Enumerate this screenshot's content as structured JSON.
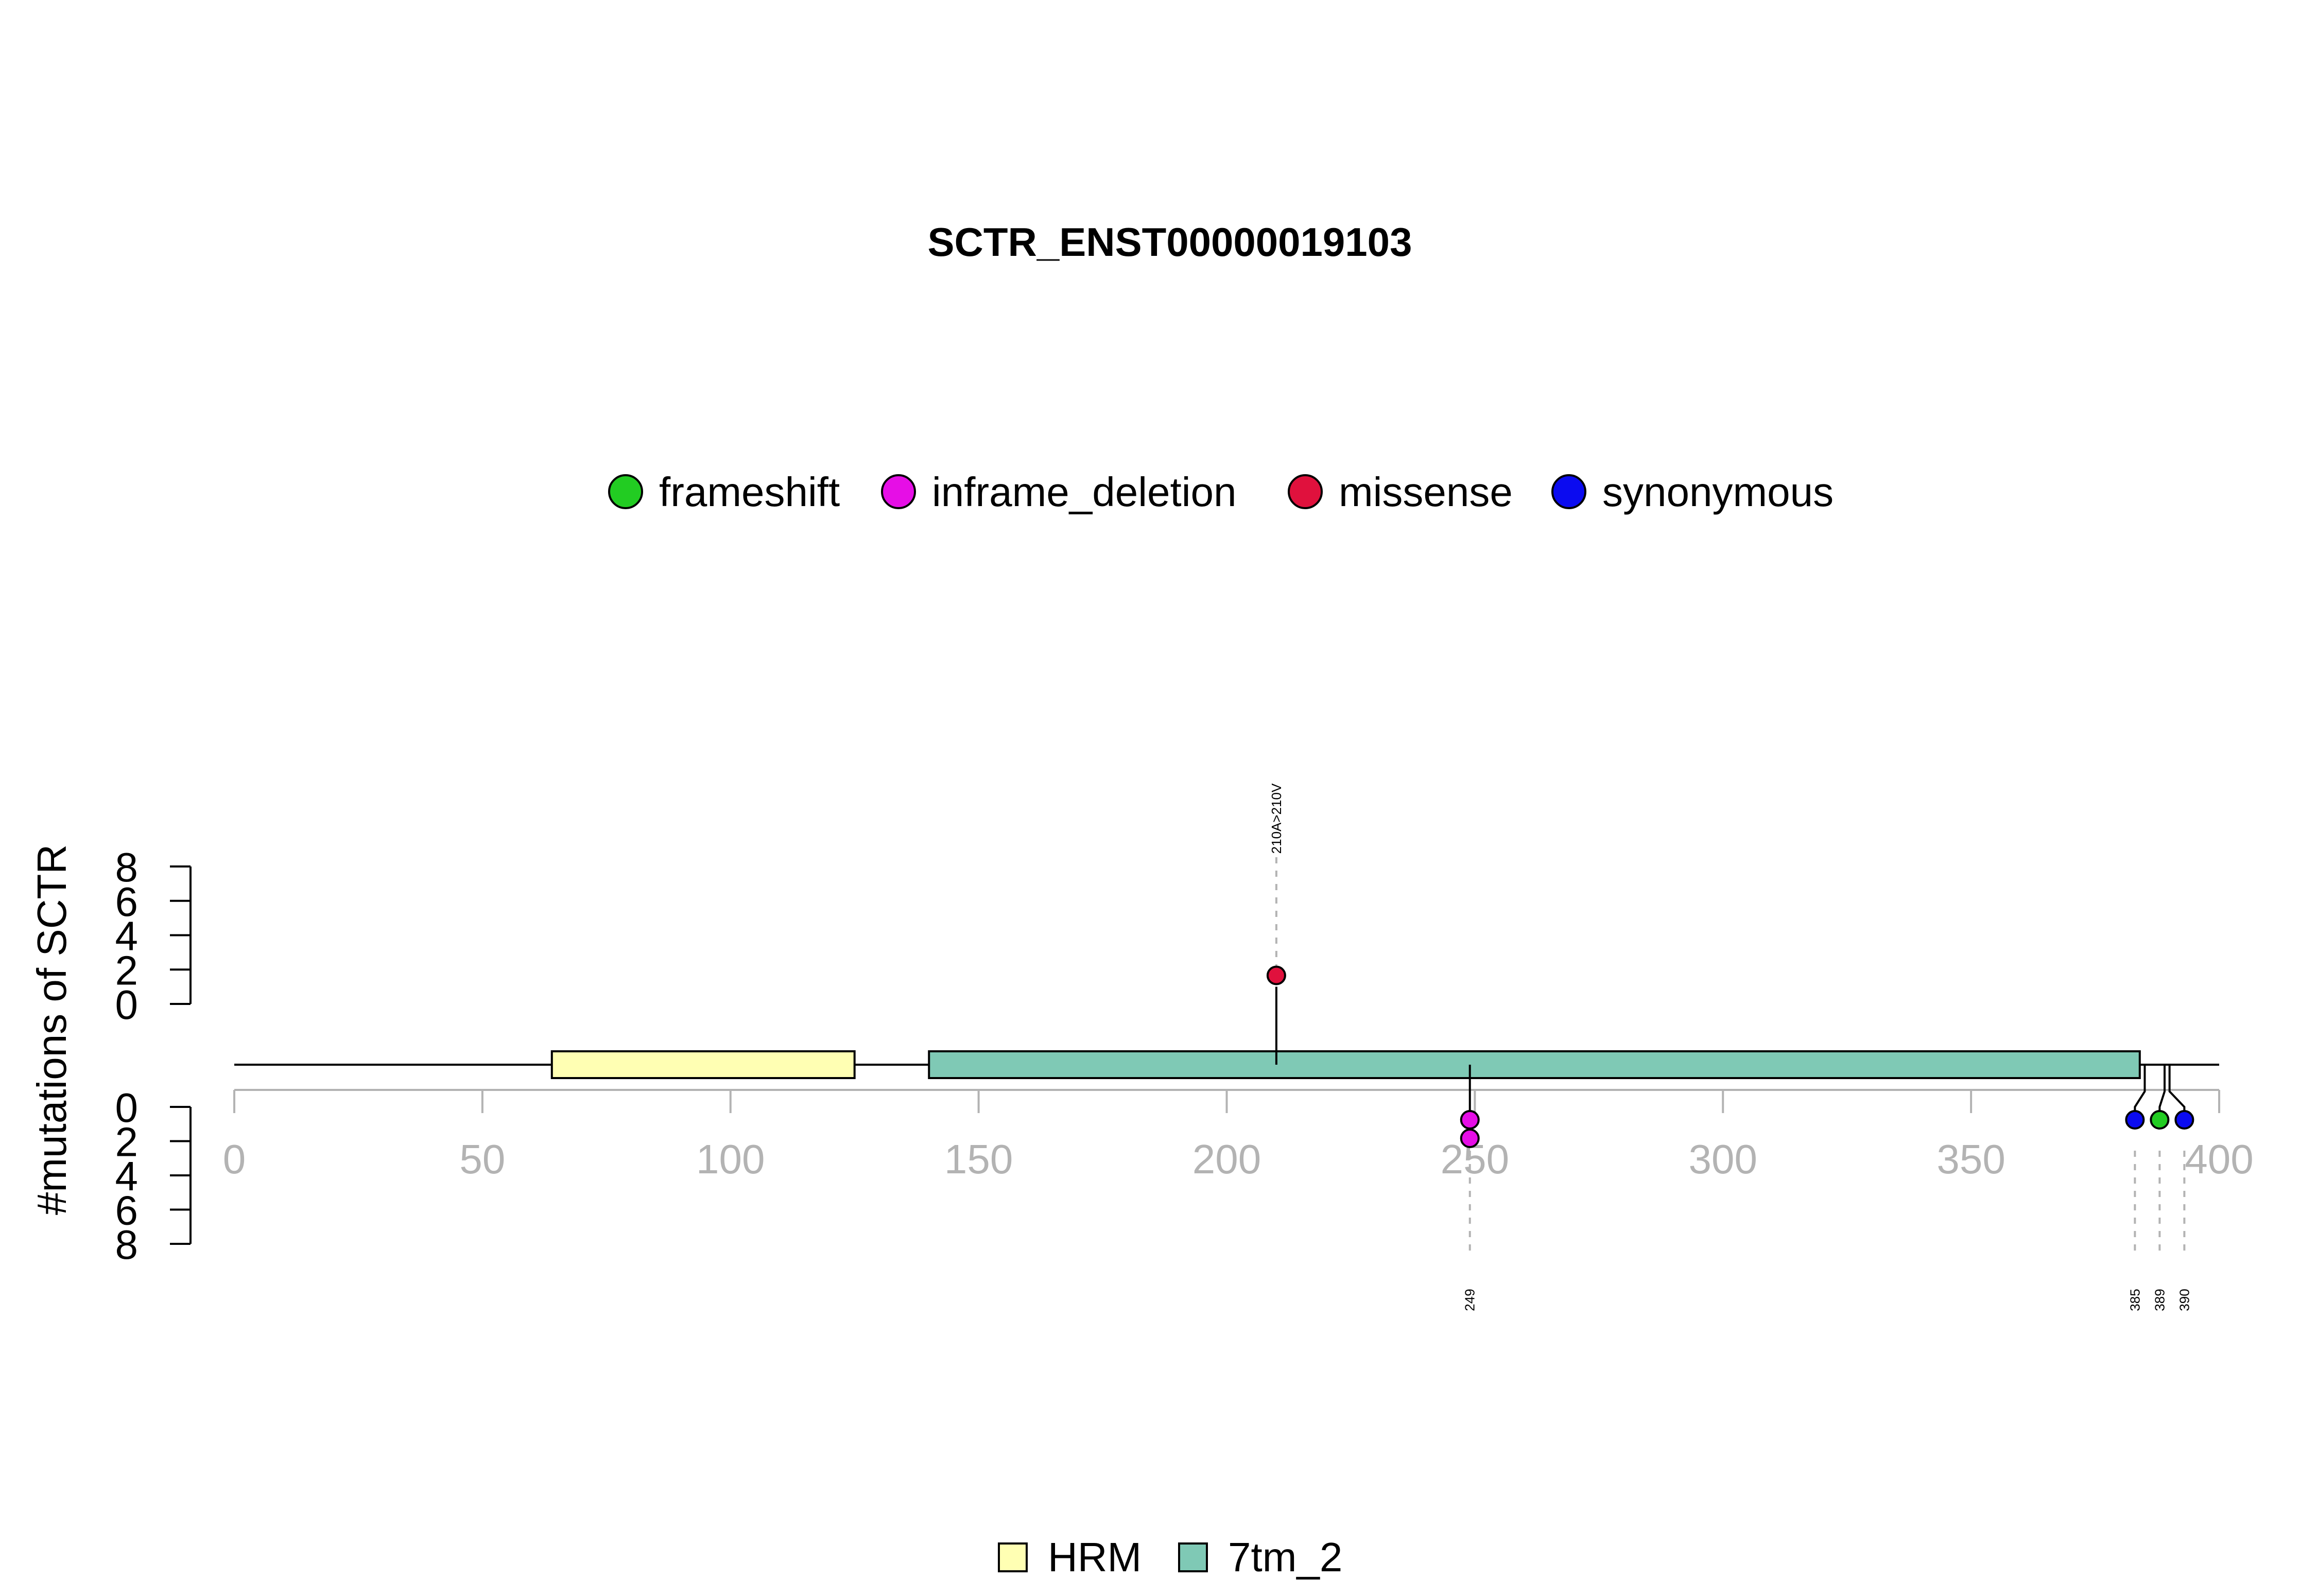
{
  "chart_data": {
    "type": "lollipop",
    "title": "SCTR_ENST00000019103",
    "ylabel": "#mutations of SCTR",
    "protein_length": 400,
    "xlim": [
      0,
      400
    ],
    "x_ticks": [
      0,
      50,
      100,
      150,
      200,
      250,
      300,
      350,
      400
    ],
    "y_ticks_top": [
      0,
      2,
      4,
      6,
      8
    ],
    "y_ticks_bottom": [
      0,
      2,
      4,
      6,
      8
    ],
    "ylim_top": [
      0,
      8
    ],
    "ylim_bottom": [
      0,
      8
    ],
    "mutation_legend": [
      {
        "name": "frameshift",
        "color": "#22cc22"
      },
      {
        "name": "inframe_deletion",
        "color": "#e60ee6"
      },
      {
        "name": "missense",
        "color": "#e0113d"
      },
      {
        "name": "synonymous",
        "color": "#0b0bf0"
      }
    ],
    "domain_legend": [
      {
        "name": "HRM",
        "color": "#ffffb3"
      },
      {
        "name": "7tm_2",
        "color": "#7fc9b5"
      }
    ],
    "domains": [
      {
        "name": "HRM",
        "start": 64,
        "end": 125
      },
      {
        "name": "7tm_2",
        "start": 140,
        "end": 384
      }
    ],
    "mutations": [
      {
        "position": 210,
        "label": "210A>210V",
        "side": "top",
        "type": "missense",
        "count": 1
      },
      {
        "position": 249,
        "label": "249",
        "side": "bottom",
        "type": "inframe_deletion",
        "count": 2
      },
      {
        "position": 385,
        "label": "385",
        "side": "bottom",
        "type": "synonymous",
        "count": 1
      },
      {
        "position": 389,
        "label": "389",
        "side": "bottom",
        "type": "frameshift",
        "count": 1
      },
      {
        "position": 390,
        "label": "390",
        "side": "bottom",
        "type": "synonymous",
        "count": 1
      }
    ]
  }
}
